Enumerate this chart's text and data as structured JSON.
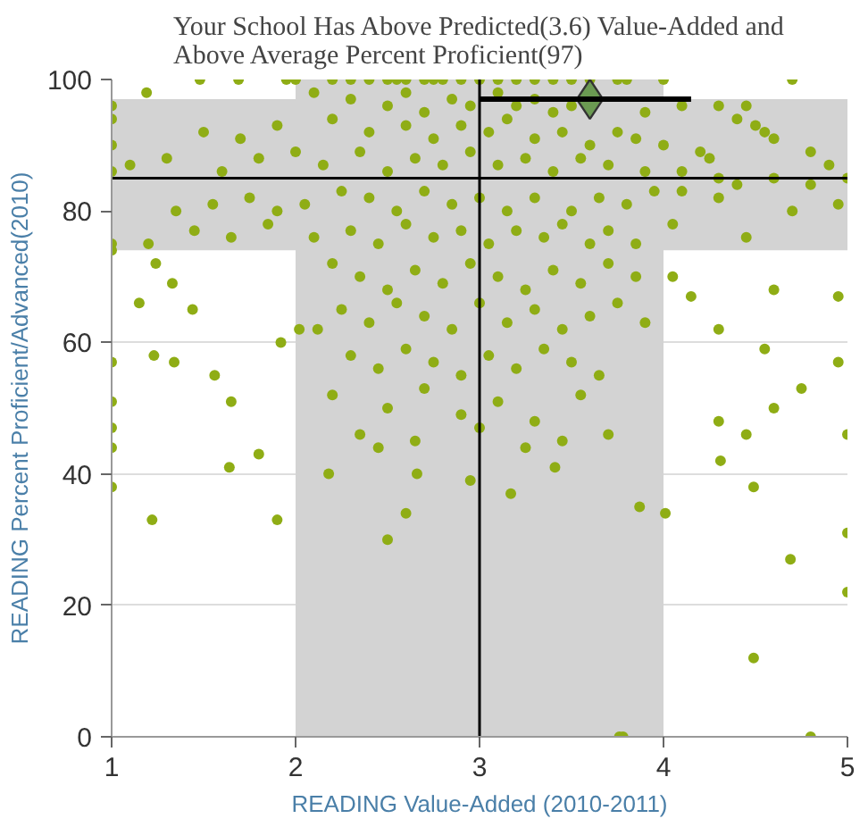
{
  "chart_data": {
    "type": "scatter",
    "title": "Your School Has Above Predicted(3.6) Value-Added and\nAbove Average Percent Proficient(97)",
    "xlabel": "READING Value-Added (2010-2011)",
    "ylabel": "READING Percent Proficient/Advanced(2010)",
    "xlim": [
      1,
      5
    ],
    "ylim": [
      0,
      100
    ],
    "xticks": [
      1,
      2,
      3,
      4,
      5
    ],
    "yticks": [
      0,
      20,
      40,
      60,
      80,
      100
    ],
    "grid": "y",
    "bands": [
      {
        "axis": "x",
        "from": 2,
        "to": 4,
        "color": "#d3d3d3"
      },
      {
        "axis": "y",
        "from": 74,
        "to": 97,
        "color": "#d3d3d3"
      }
    ],
    "ref_lines": [
      {
        "axis": "x",
        "value": 3,
        "color": "#000000"
      },
      {
        "axis": "y",
        "value": 85,
        "color": "#000000"
      }
    ],
    "series": [
      {
        "type": "scatter",
        "color": "#8fad15",
        "marker": "circle",
        "x": [
          1.0,
          1.22,
          1.64,
          1.8,
          1.9,
          2.18,
          2.45,
          2.5,
          2.6,
          2.66,
          2.95,
          3.17,
          3.41,
          3.45,
          3.87,
          4.01,
          4.31,
          4.49,
          4.69,
          5.0,
          5.0,
          4.49,
          3.76,
          3.78,
          4.8,
          5.0,
          1.0,
          1.0,
          1.0,
          1.0,
          1.0,
          1.0,
          1.0,
          1.0,
          1.0,
          1.0,
          1.19,
          1.48,
          1.69,
          1.23,
          1.34,
          1.56,
          1.65,
          1.15,
          1.24,
          1.33,
          1.44,
          1.92,
          2.02,
          2.12,
          1.95,
          2.0,
          2.2,
          2.3,
          2.4,
          2.5,
          2.55,
          2.6,
          2.7,
          2.75,
          2.8,
          2.9,
          3.0,
          3.1,
          3.2,
          3.3,
          3.4,
          3.5,
          3.6,
          3.75,
          3.8,
          4.0,
          4.7,
          2.1,
          2.3,
          2.5,
          2.6,
          2.7,
          2.85,
          2.95,
          3.1,
          3.2,
          3.3,
          3.4,
          3.5,
          3.9,
          4.1,
          4.3,
          4.45,
          4.5,
          4.55,
          4.4,
          1.5,
          1.7,
          1.9,
          2.2,
          2.4,
          2.6,
          2.75,
          2.9,
          3.05,
          3.15,
          3.3,
          3.45,
          3.6,
          3.75,
          3.85,
          4.0,
          4.2,
          4.25,
          4.6,
          4.8,
          5.0,
          4.9,
          1.3,
          1.6,
          1.8,
          2.0,
          2.15,
          2.35,
          2.5,
          2.65,
          2.8,
          2.95,
          3.1,
          3.25,
          3.4,
          3.55,
          3.7,
          3.9,
          4.1,
          4.3,
          4.6,
          4.8,
          1.1,
          1.35,
          1.55,
          1.75,
          1.9,
          2.05,
          2.25,
          2.4,
          2.55,
          2.7,
          2.85,
          3.0,
          3.15,
          3.3,
          3.5,
          3.65,
          3.8,
          3.95,
          4.1,
          4.3,
          4.4,
          4.95,
          4.7,
          4.45,
          1.2,
          1.45,
          1.65,
          1.85,
          2.1,
          2.3,
          2.45,
          2.6,
          2.75,
          2.9,
          3.05,
          3.2,
          3.35,
          3.45,
          3.6,
          3.7,
          3.85,
          4.05,
          2.2,
          2.35,
          2.5,
          2.65,
          2.8,
          2.95,
          3.1,
          3.25,
          3.4,
          3.55,
          3.7,
          3.85,
          2.25,
          2.4,
          2.55,
          2.7,
          2.85,
          3.0,
          3.15,
          3.3,
          3.45,
          3.6,
          3.75,
          3.9,
          2.3,
          2.45,
          2.6,
          2.75,
          2.9,
          3.05,
          3.2,
          3.35,
          3.5,
          3.65,
          2.2,
          2.5,
          2.7,
          2.9,
          3.1,
          3.3,
          3.55,
          2.35,
          2.65,
          3.0,
          3.25,
          3.7,
          4.05,
          4.15,
          4.3,
          4.6,
          4.55,
          4.95,
          4.75,
          4.95,
          4.6,
          4.3,
          4.45
        ],
        "values": [
          38,
          33,
          41,
          43,
          33,
          40,
          44,
          30,
          34,
          40,
          39,
          37,
          41,
          45,
          35,
          34,
          42,
          38,
          27,
          31,
          22,
          12,
          0,
          0,
          0,
          46,
          94,
          90,
          86,
          96,
          75,
          74,
          57,
          51,
          47,
          44,
          98,
          100,
          100,
          58,
          57,
          55,
          51,
          66,
          72,
          69,
          65,
          60,
          62,
          62,
          100,
          100,
          100,
          100,
          100,
          100,
          100,
          100,
          100,
          100,
          100,
          100,
          100,
          100,
          100,
          100,
          100,
          100,
          100,
          100,
          100,
          100,
          100,
          98,
          97,
          96,
          98,
          95,
          97,
          96,
          98,
          96,
          97,
          95,
          96,
          95,
          96,
          96,
          96,
          93,
          92,
          94,
          92,
          91,
          93,
          94,
          92,
          93,
          91,
          93,
          92,
          94,
          91,
          92,
          90,
          92,
          91,
          90,
          89,
          88,
          91,
          89,
          85,
          87,
          88,
          86,
          88,
          89,
          87,
          89,
          86,
          88,
          87,
          89,
          87,
          88,
          86,
          88,
          87,
          86,
          86,
          85,
          85,
          84,
          87,
          80,
          81,
          82,
          80,
          81,
          83,
          82,
          80,
          83,
          81,
          82,
          80,
          82,
          80,
          82,
          81,
          83,
          83,
          82,
          84,
          81,
          80,
          76,
          75,
          77,
          76,
          78,
          76,
          77,
          75,
          78,
          76,
          77,
          75,
          77,
          76,
          78,
          75,
          77,
          75,
          78,
          72,
          70,
          68,
          71,
          69,
          72,
          70,
          68,
          71,
          69,
          72,
          70,
          65,
          63,
          66,
          64,
          62,
          66,
          63,
          65,
          62,
          64,
          66,
          63,
          58,
          56,
          59,
          57,
          55,
          58,
          56,
          59,
          57,
          55,
          52,
          50,
          53,
          49,
          51,
          48,
          52,
          46,
          45,
          47,
          44,
          46,
          70,
          67,
          62,
          68,
          59,
          67,
          53,
          57,
          50,
          48,
          46
        ]
      },
      {
        "type": "scatter",
        "color": "#6b9a52",
        "marker": "diamond",
        "x": [
          3.6
        ],
        "values": [
          97
        ],
        "xerrors": [
          [
            3.0,
            4.15
          ]
        ]
      }
    ]
  }
}
